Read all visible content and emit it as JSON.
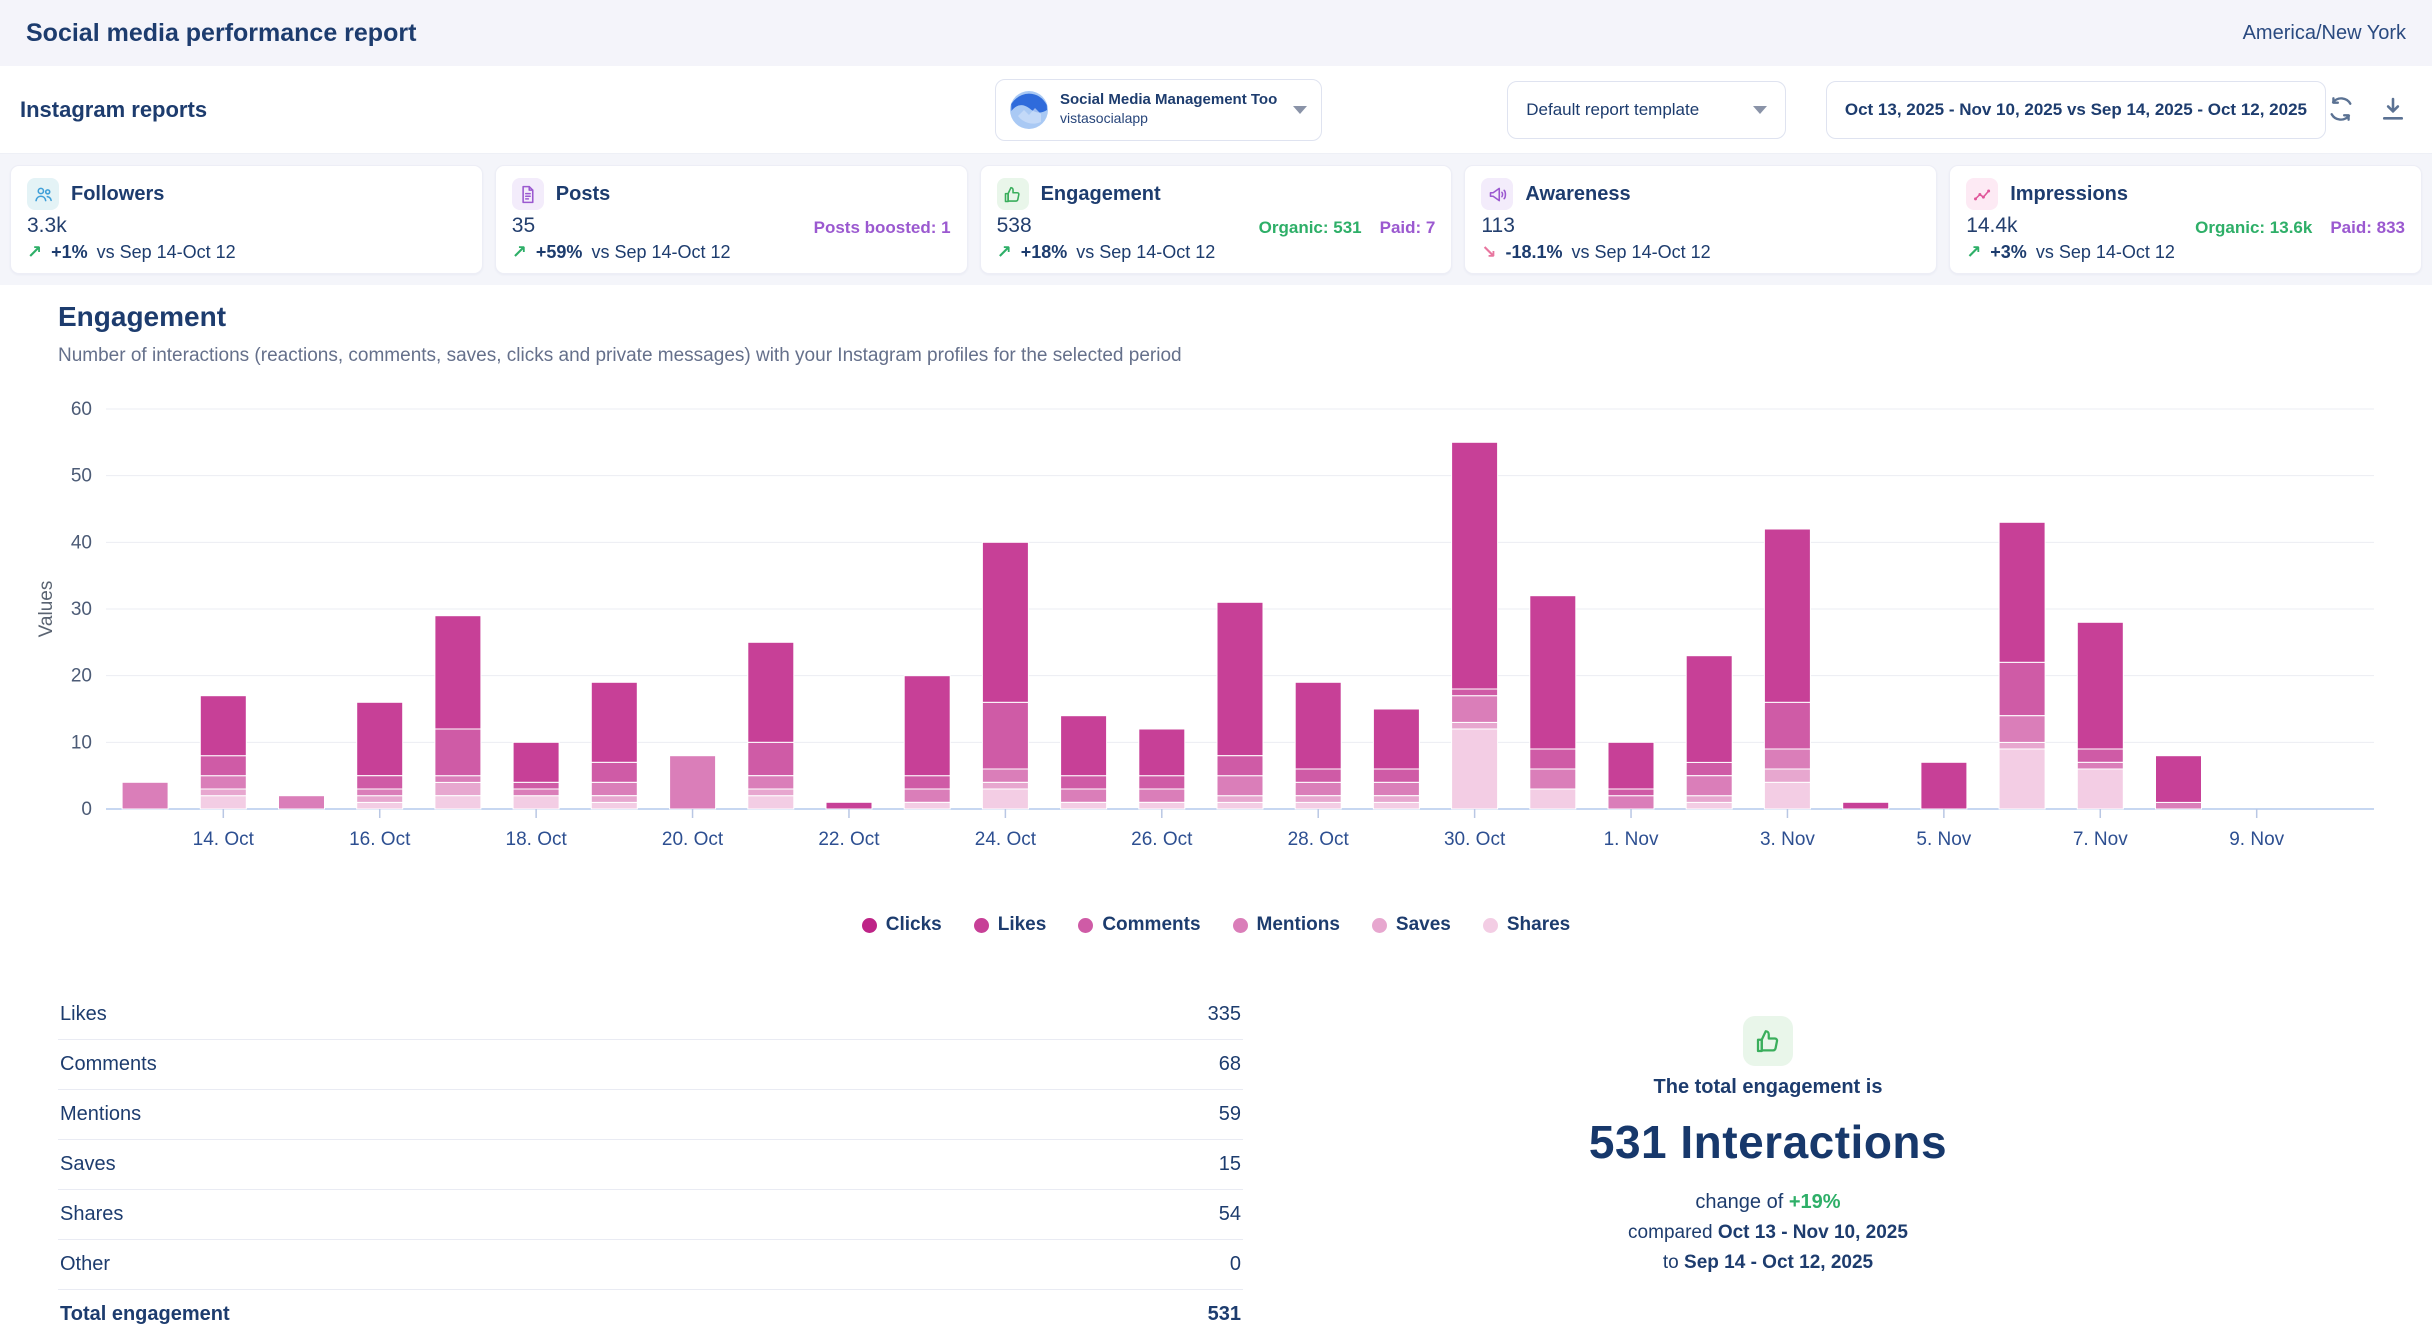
{
  "header": {
    "title": "Social media performance report",
    "timezone": "America/New York"
  },
  "toolbar": {
    "section_title": "Instagram reports",
    "profile": {
      "name": "Social Media Management Too",
      "handle": "vistasocialapp"
    },
    "template_selector": "Default report template",
    "date_range": "Oct 13, 2025 - Nov 10, 2025 vs Sep 14, 2025 - Oct 12, 2025"
  },
  "stat_cards": [
    {
      "id": "followers",
      "icon": "users-icon",
      "label": "Followers",
      "value": "3.3k",
      "change": "+1%",
      "direction": "up",
      "vs": "vs Sep 14-Oct 12",
      "accent": "#3f9fd8",
      "chip_bg": "#e4f3f6",
      "extras": []
    },
    {
      "id": "posts",
      "icon": "file-icon",
      "label": "Posts",
      "value": "35",
      "change": "+59%",
      "direction": "up",
      "vs": "vs Sep 14-Oct 12",
      "accent": "#9b59d0",
      "chip_bg": "#f3ecfb",
      "extras": [
        {
          "text": "Posts boosted: 1",
          "color": "#9b59d0"
        }
      ]
    },
    {
      "id": "engagement",
      "icon": "thumb-up-icon",
      "label": "Engagement",
      "value": "538",
      "change": "+18%",
      "direction": "up",
      "vs": "vs Sep 14-Oct 12",
      "accent": "#3aae5c",
      "chip_bg": "#e9f6ea",
      "extras": [
        {
          "text": "Organic: 531",
          "color": "#2eaf68"
        },
        {
          "text": "Paid: 7",
          "color": "#9b59d0"
        }
      ]
    },
    {
      "id": "awareness",
      "icon": "megaphone-icon",
      "label": "Awareness",
      "value": "113",
      "change": "-18.1%",
      "direction": "down",
      "vs": "vs Sep 14-Oct 12",
      "accent": "#9b59d0",
      "chip_bg": "#f3ecfb",
      "extras": []
    },
    {
      "id": "impressions",
      "icon": "trend-icon",
      "label": "Impressions",
      "value": "14.4k",
      "change": "+3%",
      "direction": "up",
      "vs": "vs Sep 14-Oct 12",
      "accent": "#e0569a",
      "chip_bg": "#fdeaf4",
      "extras": [
        {
          "text": "Organic: 13.6k",
          "color": "#2eaf68"
        },
        {
          "text": "Paid: 833",
          "color": "#9b59d0"
        }
      ]
    }
  ],
  "engagement_section": {
    "title": "Engagement",
    "subtitle": "Number of interactions (reactions, comments, saves, clicks and private messages) with your Instagram profiles for the selected period"
  },
  "chart_data": {
    "type": "bar",
    "stacked": true,
    "title": "Engagement",
    "xlabel": "",
    "ylabel": "Values",
    "ylim": [
      0,
      60
    ],
    "yticks": [
      0,
      10,
      20,
      30,
      40,
      50,
      60
    ],
    "grid": true,
    "legend_position": "bottom",
    "categories": [
      "13. Oct",
      "14. Oct",
      "15. Oct",
      "16. Oct",
      "17. Oct",
      "18. Oct",
      "19. Oct",
      "20. Oct",
      "21. Oct",
      "22. Oct",
      "23. Oct",
      "24. Oct",
      "25. Oct",
      "26. Oct",
      "27. Oct",
      "28. Oct",
      "29. Oct",
      "30. Oct",
      "31. Oct",
      "1. Nov",
      "2. Nov",
      "3. Nov",
      "4. Nov",
      "5. Nov",
      "6. Nov",
      "7. Nov",
      "8. Nov",
      "9. Nov",
      "10. Nov"
    ],
    "xticks_shown": [
      "14. Oct",
      "16. Oct",
      "18. Oct",
      "20. Oct",
      "22. Oct",
      "24. Oct",
      "26. Oct",
      "28. Oct",
      "30. Oct",
      "1. Nov",
      "3. Nov",
      "5. Nov",
      "7. Nov",
      "9. Nov"
    ],
    "stack_order_bottom_to_top": [
      "Shares",
      "Saves",
      "Mentions",
      "Comments",
      "Likes",
      "Clicks"
    ],
    "legend_order": [
      "Clicks",
      "Likes",
      "Comments",
      "Mentions",
      "Saves",
      "Shares"
    ],
    "series": [
      {
        "name": "Clicks",
        "color": "#be2487",
        "values": [
          0,
          0,
          0,
          0,
          0,
          0,
          0,
          0,
          0,
          0,
          0,
          0,
          0,
          0,
          0,
          0,
          0,
          0,
          0,
          0,
          0,
          0,
          0,
          0,
          0,
          0,
          0,
          0,
          0
        ]
      },
      {
        "name": "Likes",
        "color": "#c74097",
        "values": [
          0,
          9,
          0,
          11,
          17,
          6,
          12,
          0,
          15,
          1,
          15,
          24,
          9,
          7,
          23,
          13,
          9,
          37,
          23,
          7,
          16,
          26,
          1,
          7,
          21,
          19,
          7,
          0,
          0
        ]
      },
      {
        "name": "Comments",
        "color": "#cf5ba6",
        "values": [
          0,
          3,
          0,
          2,
          7,
          1,
          3,
          0,
          5,
          0,
          2,
          10,
          2,
          2,
          3,
          2,
          2,
          1,
          3,
          1,
          2,
          7,
          0,
          0,
          8,
          2,
          0,
          0,
          0
        ]
      },
      {
        "name": "Mentions",
        "color": "#da7eb9",
        "values": [
          4,
          2,
          2,
          1,
          1,
          1,
          2,
          8,
          2,
          0,
          2,
          2,
          2,
          2,
          3,
          2,
          2,
          4,
          3,
          2,
          3,
          3,
          0,
          0,
          4,
          1,
          1,
          0,
          0
        ]
      },
      {
        "name": "Saves",
        "color": "#e7a7cf",
        "values": [
          0,
          1,
          0,
          1,
          2,
          0,
          1,
          0,
          1,
          0,
          0,
          1,
          0,
          0,
          1,
          1,
          1,
          1,
          0,
          0,
          1,
          2,
          0,
          0,
          1,
          0,
          0,
          0,
          0
        ]
      },
      {
        "name": "Shares",
        "color": "#f3cde4",
        "values": [
          0,
          2,
          0,
          1,
          2,
          2,
          1,
          0,
          2,
          0,
          1,
          3,
          1,
          1,
          1,
          1,
          1,
          12,
          3,
          0,
          1,
          4,
          0,
          0,
          9,
          6,
          0,
          0,
          0
        ]
      }
    ],
    "totals_by_day": [
      4,
      17,
      2,
      16,
      29,
      10,
      19,
      8,
      25,
      1,
      20,
      40,
      14,
      12,
      31,
      19,
      15,
      55,
      32,
      10,
      23,
      42,
      1,
      7,
      43,
      28,
      8,
      0,
      0
    ]
  },
  "breakdown_table": {
    "rows": [
      {
        "label": "Likes",
        "value": "335"
      },
      {
        "label": "Comments",
        "value": "68"
      },
      {
        "label": "Mentions",
        "value": "59"
      },
      {
        "label": "Saves",
        "value": "15"
      },
      {
        "label": "Shares",
        "value": "54"
      },
      {
        "label": "Other",
        "value": "0"
      }
    ],
    "total": {
      "label": "Total engagement",
      "value": "531"
    }
  },
  "summary": {
    "lead": "The total engagement is",
    "headline": "531 Interactions",
    "change_prefix": "change of",
    "change_value": "+19%",
    "compare_prefix": "compared",
    "compare_current": "Oct 13 - Nov 10, 2025",
    "compare_to_prefix": "to",
    "compare_previous": "Sep 14 - Oct 12, 2025"
  },
  "colors": {
    "navy": "#1d3c6e",
    "green": "#2eaf68",
    "purple": "#9b59d0",
    "pink_down": "#e8769f",
    "page_bg": "#f4f5fa",
    "grid_line": "#ebedf3",
    "baseline": "#c7d7f1"
  }
}
